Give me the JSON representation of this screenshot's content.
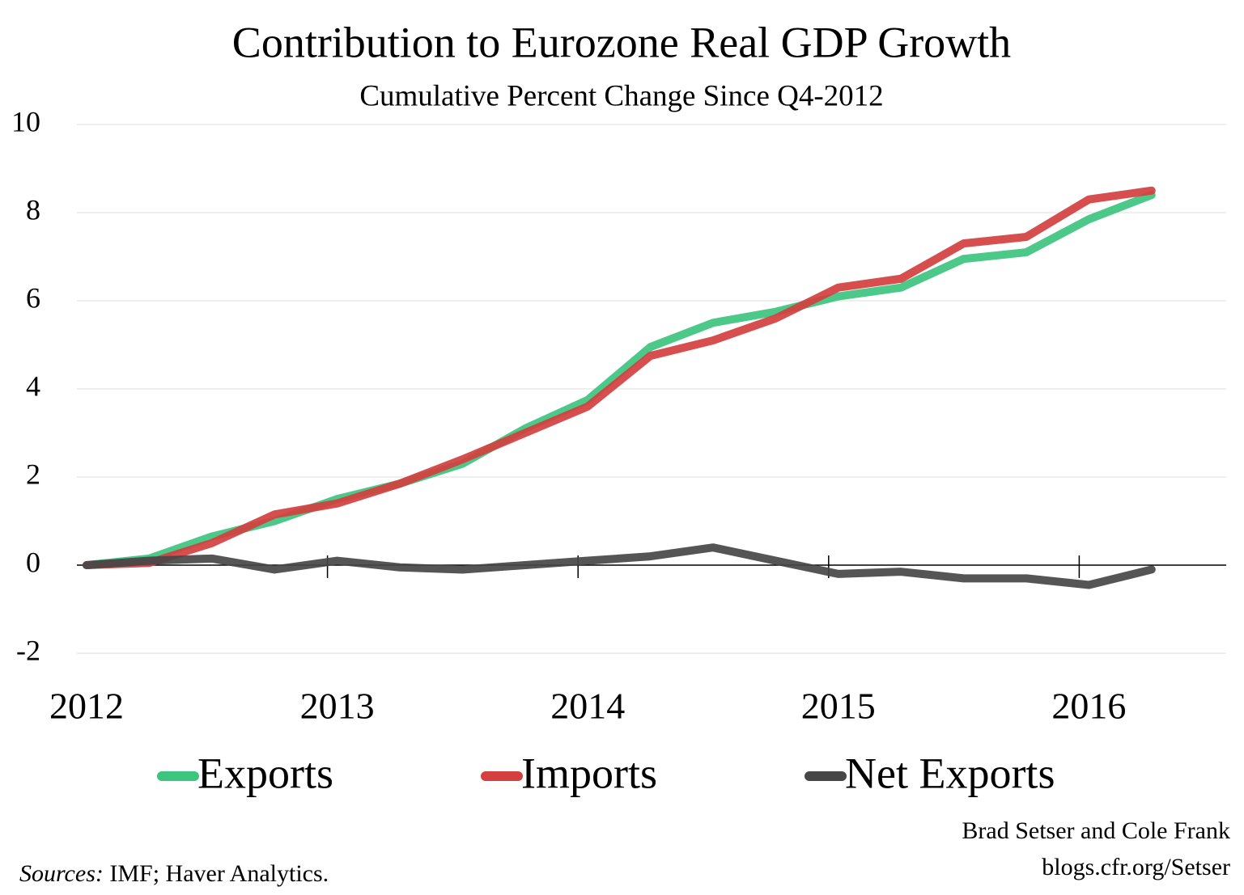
{
  "chart_data": {
    "type": "line",
    "title": "Contribution to Eurozone Real GDP Growth",
    "subtitle": "Cumulative Percent Change Since Q4-2012",
    "categories": [
      "2012",
      null,
      null,
      null,
      "2013",
      null,
      null,
      null,
      "2014",
      null,
      null,
      null,
      "2015",
      null,
      null,
      null,
      "2016",
      null
    ],
    "series": [
      {
        "name": "Exports",
        "color": "#3dc47e",
        "values": [
          0,
          0.15,
          0.65,
          1.0,
          1.5,
          1.85,
          2.3,
          3.1,
          3.75,
          4.95,
          5.5,
          5.75,
          6.1,
          6.3,
          6.95,
          7.1,
          7.85,
          8.4
        ]
      },
      {
        "name": "Imports",
        "color": "#d43f3f",
        "values": [
          0,
          0.05,
          0.5,
          1.15,
          1.4,
          1.85,
          2.4,
          3.0,
          3.6,
          4.75,
          5.1,
          5.6,
          6.3,
          6.5,
          7.3,
          7.45,
          8.3,
          8.5
        ]
      },
      {
        "name": "Net Exports",
        "color": "#474747",
        "values": [
          0,
          0.1,
          0.15,
          -0.1,
          0.1,
          -0.05,
          -0.1,
          0.0,
          0.1,
          0.2,
          0.4,
          0.1,
          -0.2,
          -0.15,
          -0.3,
          -0.3,
          -0.45,
          -0.1
        ]
      }
    ],
    "ylim": [
      -2,
      10
    ],
    "yticks": [
      -2,
      0,
      2,
      4,
      6,
      8,
      10
    ],
    "grid": true,
    "legend": "bottom",
    "sources_label": "Sources:",
    "sources": "IMF; Haver Analytics.",
    "credit": [
      "Brad Setser and Cole Frank",
      "blogs.cfr.org/Setser"
    ]
  }
}
